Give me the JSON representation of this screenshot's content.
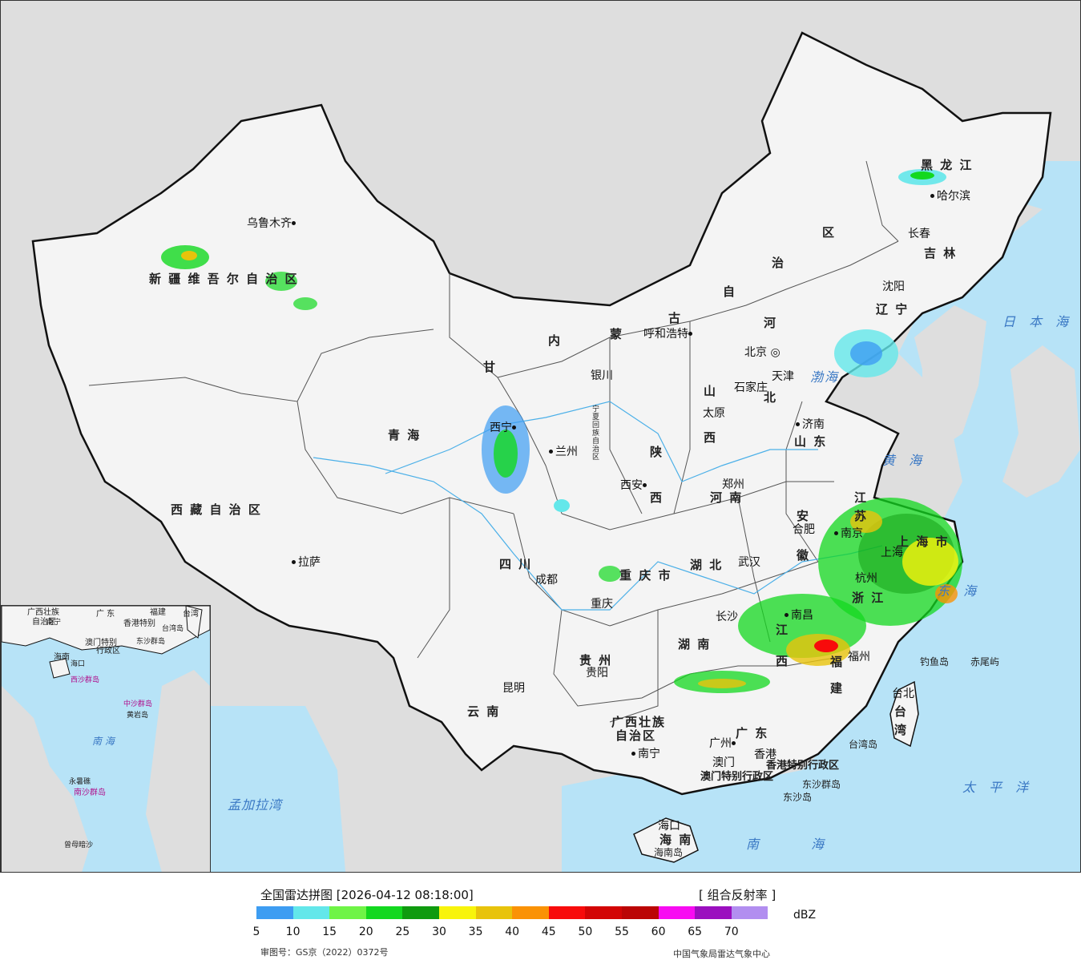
{
  "legend": {
    "title": "全国雷达拼图 [2026-04-12 08:18:00]",
    "product": "[ 组合反射率 ]",
    "unit": "dBZ",
    "ticks": [
      "5",
      "10",
      "15",
      "20",
      "25",
      "30",
      "35",
      "40",
      "45",
      "50",
      "55",
      "60",
      "65",
      "70"
    ],
    "colors": [
      "#3d9df2",
      "#63e7ea",
      "#6ff446",
      "#13d81f",
      "#0f9b0f",
      "#f8f40b",
      "#e8c30b",
      "#fa9205",
      "#f80b0b",
      "#d30505",
      "#bb0505",
      "#f80bf2",
      "#9b0fbf",
      "#b28ef0"
    ],
    "approval": "审图号：GS京（2022）0372号",
    "credit": "中国气象局雷达气象中心"
  },
  "regions": [
    {
      "name": "新 疆 维 吾 尔 自 治 区",
      "cls": "big"
    },
    {
      "name": "西 藏 自 治 区",
      "cls": "big"
    },
    {
      "name": "青   海",
      "cls": "big"
    },
    {
      "name": "甘",
      "cls": "big"
    },
    {
      "name": "内",
      "cls": "big"
    },
    {
      "name": "蒙",
      "cls": "big"
    },
    {
      "name": "古",
      "cls": "big"
    },
    {
      "name": "自",
      "cls": "big"
    },
    {
      "name": "治",
      "cls": "big"
    },
    {
      "name": "区",
      "cls": "big"
    },
    {
      "name": "黑   龙   江",
      "cls": "big"
    },
    {
      "name": "吉   林",
      "cls": "big"
    },
    {
      "name": "辽   宁",
      "cls": "big"
    },
    {
      "name": "河",
      "cls": "big"
    },
    {
      "name": "北",
      "cls": "big"
    },
    {
      "name": "山",
      "cls": "big"
    },
    {
      "name": "西",
      "cls": "big"
    },
    {
      "name": "山   东",
      "cls": "big"
    },
    {
      "name": "河   南",
      "cls": "big"
    },
    {
      "name": "陕",
      "cls": "big"
    },
    {
      "name": "西",
      "cls": "big"
    },
    {
      "name": "四   川",
      "cls": "big"
    },
    {
      "name": "重 庆 市",
      "cls": "big"
    },
    {
      "name": "湖   北",
      "cls": "big"
    },
    {
      "name": "安",
      "cls": "big"
    },
    {
      "name": "徽",
      "cls": "big"
    },
    {
      "name": "江",
      "cls": "big"
    },
    {
      "name": "苏",
      "cls": "big"
    },
    {
      "name": "上 海 市",
      "cls": "big"
    },
    {
      "name": "浙   江",
      "cls": "big"
    },
    {
      "name": "江",
      "cls": "big"
    },
    {
      "name": "西",
      "cls": "big"
    },
    {
      "name": "湖   南",
      "cls": "big"
    },
    {
      "name": "福",
      "cls": "big"
    },
    {
      "name": "建",
      "cls": "big"
    },
    {
      "name": "贵   州",
      "cls": "big"
    },
    {
      "name": "云   南",
      "cls": "big"
    },
    {
      "name": "广西壮族",
      "cls": "big"
    },
    {
      "name": "自治区",
      "cls": "big"
    },
    {
      "name": "广   东",
      "cls": "big"
    },
    {
      "name": "海   南",
      "cls": "big"
    },
    {
      "name": "台",
      "cls": "big"
    },
    {
      "name": "湾",
      "cls": "big"
    },
    {
      "name": "香港特别行政区",
      "cls": "big"
    },
    {
      "name": "澳门特别行政区",
      "cls": "big"
    },
    {
      "name": "宁夏回族自治区",
      "cls": "big"
    }
  ],
  "cities": [
    "乌鲁木齐",
    "拉萨",
    "西宁",
    "兰州",
    "银川",
    "呼和浩特",
    "北京",
    "天津",
    "石家庄",
    "太原",
    "济南",
    "西安",
    "郑州",
    "合肥",
    "南京",
    "上海",
    "杭州",
    "武汉",
    "成都",
    "重庆",
    "长沙",
    "南昌",
    "福州",
    "贵阳",
    "昆明",
    "南宁",
    "广州",
    "澳门",
    "香港",
    "海口",
    "台北",
    "哈尔滨",
    "长春",
    "沈阳"
  ],
  "seas": [
    "日 本 海",
    "渤海",
    "黄 海",
    "东 海",
    "南 海",
    "太 平 洋",
    "孟加拉湾"
  ],
  "islands": [
    "钓鱼岛",
    "赤尾屿",
    "台湾岛",
    "东沙群岛",
    "东沙岛",
    "海南岛"
  ],
  "inset": {
    "labels": [
      "广西壮族",
      "自治区",
      "广  东",
      "福建",
      "台湾",
      "南宁",
      "香港特别",
      "澳门特别",
      "行政区",
      "台湾岛",
      "东沙群岛",
      "海南",
      "海口",
      "西沙群岛",
      "中沙群岛",
      "黄岩岛",
      "南  海",
      "永暑礁",
      "南沙群岛",
      "曾母暗沙"
    ]
  }
}
